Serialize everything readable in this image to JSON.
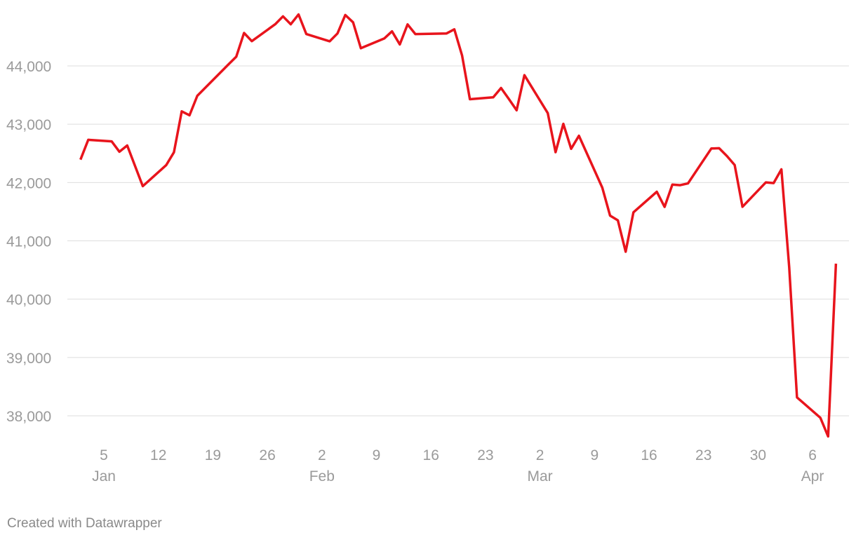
{
  "chart_data": {
    "type": "line",
    "x": [
      "01-02",
      "01-03",
      "01-06",
      "01-07",
      "01-08",
      "01-10",
      "01-13",
      "01-14",
      "01-15",
      "01-16",
      "01-17",
      "01-21",
      "01-22",
      "01-23",
      "01-24",
      "01-27",
      "01-28",
      "01-29",
      "01-30",
      "01-31",
      "02-03",
      "02-04",
      "02-05",
      "02-06",
      "02-07",
      "02-10",
      "02-11",
      "02-12",
      "02-13",
      "02-14",
      "02-18",
      "02-19",
      "02-20",
      "02-21",
      "02-24",
      "02-25",
      "02-26",
      "02-27",
      "02-28",
      "03-03",
      "03-04",
      "03-05",
      "03-06",
      "03-07",
      "03-10",
      "03-11",
      "03-12",
      "03-13",
      "03-14",
      "03-17",
      "03-18",
      "03-19",
      "03-20",
      "03-21",
      "03-24",
      "03-25",
      "03-26",
      "03-27",
      "03-28",
      "03-31",
      "04-01",
      "04-02",
      "04-03",
      "04-04",
      "04-07",
      "04-08",
      "04-09"
    ],
    "series": [
      {
        "color": "#e8141c",
        "values": [
          42392,
          42732,
          42706,
          42528,
          42635,
          41938,
          42297,
          42518,
          43221,
          43153,
          43488,
          44025,
          44157,
          44565,
          44424,
          44714,
          44850,
          44714,
          44882,
          44545,
          44422,
          44556,
          44873,
          44747,
          44303,
          44470,
          44593,
          44368,
          44711,
          44546,
          44556,
          44627,
          44176,
          43428,
          43461,
          43621,
          43433,
          43239,
          43841,
          43191,
          42521,
          43007,
          42579,
          42802,
          41912,
          41433,
          41351,
          40814,
          41489,
          41842,
          41582,
          41965,
          41954,
          41985,
          42583,
          42588,
          42455,
          42300,
          41584,
          42002,
          41990,
          42226,
          40546,
          38315,
          37966,
          37646,
          40609
        ]
      }
    ],
    "ylim": [
      37400,
      45000
    ],
    "yticks": [
      {
        "value": 38000,
        "label": "38,000"
      },
      {
        "value": 39000,
        "label": "39,000"
      },
      {
        "value": 40000,
        "label": "40,000"
      },
      {
        "value": 41000,
        "label": "41,000"
      },
      {
        "value": 42000,
        "label": "42,000"
      },
      {
        "value": 43000,
        "label": "43,000"
      },
      {
        "value": 44000,
        "label": "44,000"
      }
    ],
    "xticks": [
      {
        "value": "01-05",
        "label": "5"
      },
      {
        "value": "01-12",
        "label": "12"
      },
      {
        "value": "01-19",
        "label": "19"
      },
      {
        "value": "01-26",
        "label": "26"
      },
      {
        "value": "02-02",
        "label": "2"
      },
      {
        "value": "02-09",
        "label": "9"
      },
      {
        "value": "02-16",
        "label": "16"
      },
      {
        "value": "02-23",
        "label": "23"
      },
      {
        "value": "03-02",
        "label": "2"
      },
      {
        "value": "03-09",
        "label": "9"
      },
      {
        "value": "03-16",
        "label": "16"
      },
      {
        "value": "03-23",
        "label": "23"
      },
      {
        "value": "03-30",
        "label": "30"
      },
      {
        "value": "04-06",
        "label": "6"
      }
    ],
    "xtick_months": [
      {
        "value": "01-05",
        "label": "Jan"
      },
      {
        "value": "02-02",
        "label": "Feb"
      },
      {
        "value": "03-02",
        "label": "Mar"
      },
      {
        "value": "04-06",
        "label": "Apr"
      }
    ],
    "grid": true,
    "source": "Created with Datawrapper"
  }
}
